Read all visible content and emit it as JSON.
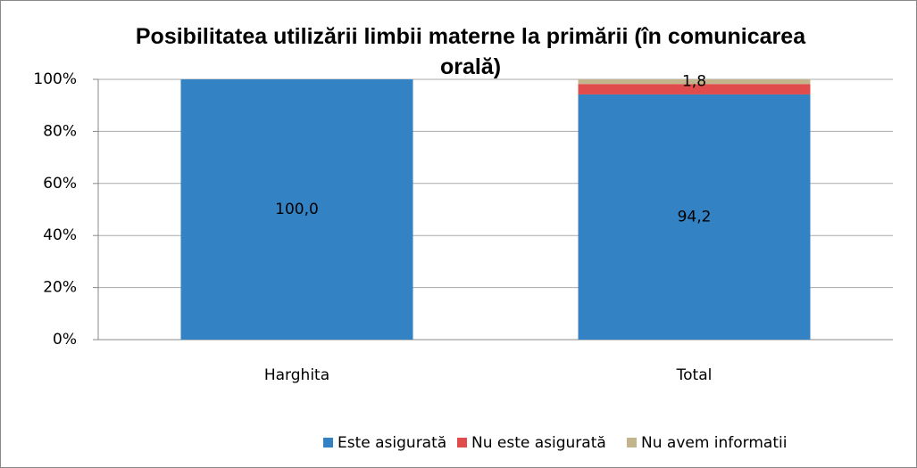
{
  "chart_data": {
    "type": "bar",
    "stacked": true,
    "title": "Posibilitatea utilizării limbii materne la primării (în comunicarea orală)",
    "categories": [
      "Harghita",
      "Total"
    ],
    "series": [
      {
        "name": "Este asigurată",
        "color": "#3282c4",
        "values": [
          100,
          94.2
        ],
        "value_labels": [
          "100,0",
          "94,2"
        ]
      },
      {
        "name": "Nu este asigurată",
        "color": "#e04b4b",
        "values": [
          0,
          4.0
        ]
      },
      {
        "name": "Nu avem informatii",
        "color": "#c4b48c",
        "values": [
          0,
          1.8
        ],
        "value_labels": [
          null,
          "1,8"
        ]
      }
    ],
    "ylim": [
      0,
      100
    ],
    "yticks": [
      {
        "value": 0,
        "label": "0%"
      },
      {
        "value": 20,
        "label": "20%"
      },
      {
        "value": 40,
        "label": "40%"
      },
      {
        "value": 60,
        "label": "60%"
      },
      {
        "value": 80,
        "label": "80%"
      },
      {
        "value": 100,
        "label": "100%"
      }
    ],
    "grid": true,
    "legend": "bottom"
  }
}
